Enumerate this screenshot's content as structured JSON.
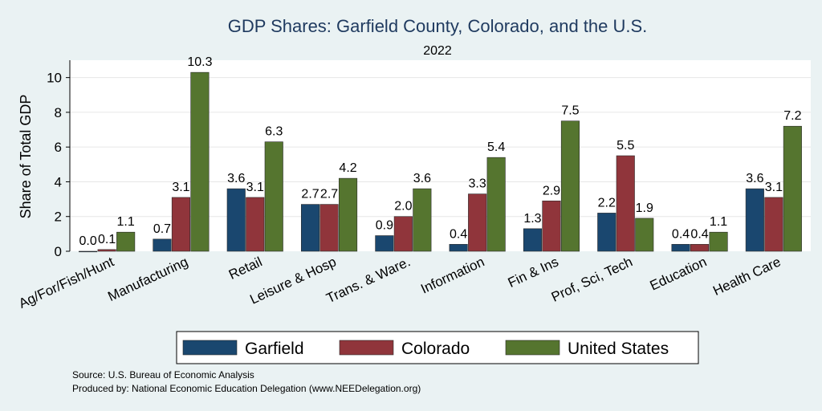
{
  "chart_data": {
    "type": "bar",
    "title": "GDP Shares: Garfield County, Colorado, and the U.S.",
    "subtitle": "2022",
    "xlabel": "",
    "ylabel": "Share of Total GDP",
    "ylim": [
      0,
      11
    ],
    "yticks": [
      0,
      2,
      4,
      6,
      8,
      10
    ],
    "grid": true,
    "legend_position": "bottom",
    "categories": [
      "Ag/For/Fish/Hunt",
      "Manufacturing",
      "Retail",
      "Leisure & Hosp",
      "Trans. & Ware.",
      "Information",
      "Fin & Ins",
      "Prof, Sci, Tech",
      "Education",
      "Health Care"
    ],
    "series": [
      {
        "name": "Garfield",
        "color": "#1a476f",
        "values": [
          0.0,
          0.7,
          3.6,
          2.7,
          0.9,
          0.4,
          1.3,
          2.2,
          0.4,
          3.6
        ]
      },
      {
        "name": "Colorado",
        "color": "#90353b",
        "values": [
          0.1,
          3.1,
          3.1,
          2.7,
          2.0,
          3.3,
          2.9,
          5.5,
          0.4,
          3.1
        ]
      },
      {
        "name": "United States",
        "color": "#55752f",
        "values": [
          1.1,
          10.3,
          6.3,
          4.2,
          3.6,
          5.4,
          7.5,
          1.9,
          1.1,
          7.2
        ]
      }
    ]
  },
  "notes": {
    "source": "Source: U.S. Bureau of Economic Analysis",
    "produced_by": "Produced by: National Economic Education Delegation (www.NEEDelegation.org)"
  }
}
